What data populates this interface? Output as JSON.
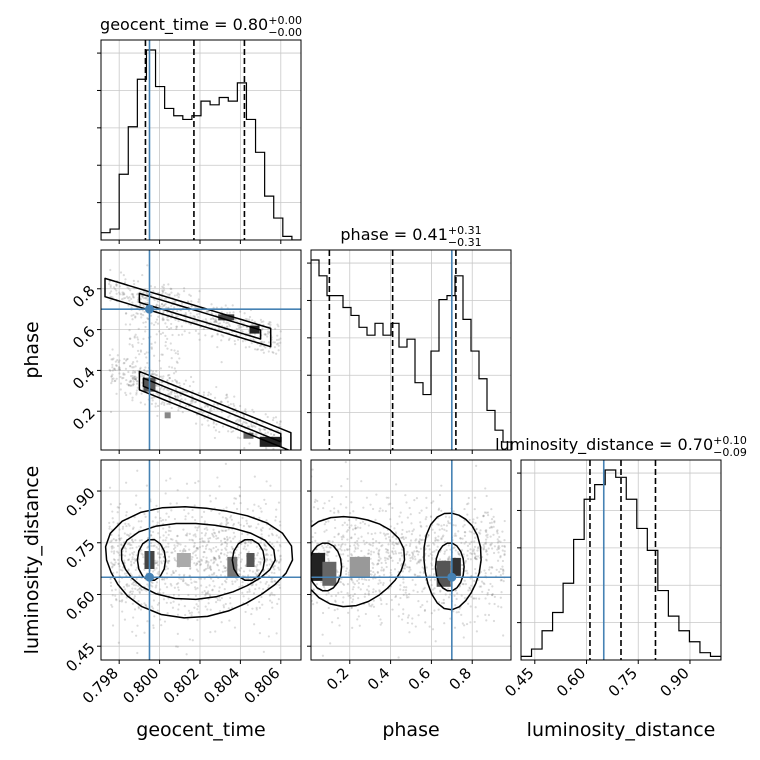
{
  "chart_data": {
    "type": "corner",
    "parameters": [
      "geocent_time",
      "phase",
      "luminosity_distance"
    ],
    "truth": {
      "geocent_time": 0.7995,
      "phase": 0.7,
      "luminosity_distance": 0.65
    },
    "axes": {
      "geocent_time": {
        "range": [
          0.7971,
          0.807
        ],
        "ticks": [
          0.798,
          0.8,
          0.802,
          0.804,
          0.806
        ],
        "tick_labels": [
          "0.798",
          "0.800",
          "0.802",
          "0.804",
          "0.806"
        ]
      },
      "phase": {
        "range": [
          0.01,
          0.99
        ],
        "ticks": [
          0.2,
          0.4,
          0.6,
          0.8
        ],
        "tick_labels": [
          "0.2",
          "0.4",
          "0.6",
          "0.8"
        ]
      },
      "luminosity_distance": {
        "range": [
          0.41,
          0.99
        ],
        "ticks": [
          0.45,
          0.6,
          0.75,
          0.9
        ],
        "tick_labels": [
          "0.45",
          "0.60",
          "0.75",
          "0.90"
        ]
      }
    },
    "diagonal": [
      {
        "param": "geocent_time",
        "title_text": "geocent_time = 0.80",
        "title_sup": "+0.00",
        "title_sub": "−0.00",
        "quantiles": [
          0.7993,
          0.8017,
          0.8042
        ],
        "hist_max": 52,
        "hist": [
          2,
          3,
          18,
          31,
          44,
          52,
          42,
          36,
          34,
          33,
          34,
          38,
          37,
          39,
          38,
          43,
          33,
          24,
          12,
          6,
          1,
          0
        ]
      },
      {
        "param": "phase",
        "title_text": "phase = 0.41",
        "title_sup": "+0.31",
        "title_sub": "−0.31",
        "quantiles": [
          0.1,
          0.41,
          0.72
        ],
        "hist_max": 48,
        "hist": [
          48,
          44,
          39,
          39,
          36,
          34,
          31,
          29,
          32,
          29,
          32,
          26,
          28,
          17,
          14,
          25,
          38,
          39,
          44,
          33,
          25,
          18,
          10,
          5,
          2
        ]
      },
      {
        "param": "luminosity_distance",
        "title_text": "luminosity_distance = 0.70",
        "title_sup": "+0.10",
        "title_sub": "−0.09",
        "quantiles": [
          0.61,
          0.7,
          0.8
        ],
        "hist_max": 52,
        "hist": [
          1,
          3,
          8,
          13,
          21,
          33,
          44,
          48,
          52,
          50,
          44,
          36,
          30,
          19,
          12,
          8,
          5,
          2,
          1
        ]
      }
    ],
    "grid": true
  }
}
